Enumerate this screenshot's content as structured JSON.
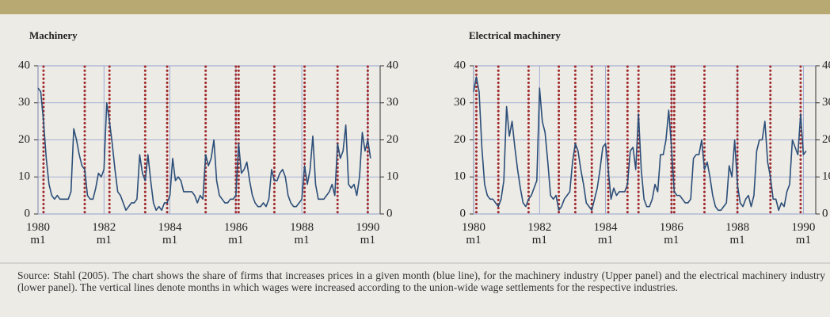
{
  "chart_data": [
    {
      "type": "line",
      "title": "Machinery",
      "categories": [
        "1980 m1",
        null,
        null,
        null,
        null,
        null,
        null,
        null,
        null,
        null,
        null,
        null,
        null,
        null,
        null,
        null,
        null,
        null,
        null,
        null,
        null,
        null,
        null,
        null,
        "1982 m1",
        null,
        null,
        null,
        null,
        null,
        null,
        null,
        null,
        null,
        null,
        null,
        null,
        null,
        null,
        null,
        null,
        null,
        null,
        null,
        null,
        null,
        null,
        null,
        "1984 m1",
        null,
        null,
        null,
        null,
        null,
        null,
        null,
        null,
        null,
        null,
        null,
        null,
        null,
        null,
        null,
        null,
        null,
        null,
        null,
        null,
        null,
        null,
        null,
        "1986 m1",
        null,
        null,
        null,
        null,
        null,
        null,
        null,
        null,
        null,
        null,
        null,
        null,
        null,
        null,
        null,
        null,
        null,
        null,
        null,
        null,
        null,
        null,
        null,
        "1988 m1",
        null,
        null,
        null,
        null,
        null,
        null,
        null,
        null,
        null,
        null,
        null,
        null,
        null,
        null,
        null,
        null,
        null,
        null,
        null,
        null,
        null,
        null,
        null,
        "1990 m1",
        null
      ],
      "series": [
        {
          "color": "#2c4e78",
          "values": [
            34,
            33,
            25,
            15,
            8,
            5,
            4,
            5,
            4,
            4,
            4,
            4,
            6,
            23,
            20,
            16,
            13,
            12,
            5,
            4,
            4,
            7,
            11,
            10,
            12,
            30,
            25,
            19,
            12,
            6,
            5,
            3,
            1,
            2,
            3,
            3,
            4,
            16,
            11,
            9,
            16,
            9,
            3,
            1,
            2,
            1,
            3,
            3,
            5,
            15,
            9,
            10,
            9,
            6,
            6,
            6,
            6,
            5,
            3,
            5,
            4,
            16,
            13,
            15,
            20,
            9,
            5,
            4,
            3,
            3,
            4,
            4,
            5,
            19,
            11,
            12,
            14,
            9,
            5,
            3,
            2,
            2,
            3,
            2,
            4,
            12,
            9,
            9,
            11,
            12,
            10,
            5,
            3,
            2,
            2,
            3,
            4,
            13,
            8,
            12,
            21,
            8,
            4,
            4,
            4,
            5,
            6,
            8,
            5,
            19,
            15,
            17,
            24,
            8,
            7,
            8,
            5,
            10,
            22,
            17,
            20,
            15
          ]
        }
      ],
      "wage_months": [
        2,
        17,
        26,
        39,
        47,
        61,
        72,
        73,
        86,
        97,
        109,
        120
      ],
      "wage_color": "#a0282a",
      "ylim": [
        0,
        40
      ],
      "yticks": [
        0,
        10,
        20,
        30,
        40
      ],
      "grid": true
    },
    {
      "type": "line",
      "title": "Electrical machinery",
      "categories": [
        "1980 m1",
        null,
        null,
        null,
        null,
        null,
        null,
        null,
        null,
        null,
        null,
        null,
        null,
        null,
        null,
        null,
        null,
        null,
        null,
        null,
        null,
        null,
        null,
        null,
        "1982 m1",
        null,
        null,
        null,
        null,
        null,
        null,
        null,
        null,
        null,
        null,
        null,
        null,
        null,
        null,
        null,
        null,
        null,
        null,
        null,
        null,
        null,
        null,
        null,
        "1984 m1",
        null,
        null,
        null,
        null,
        null,
        null,
        null,
        null,
        null,
        null,
        null,
        null,
        null,
        null,
        null,
        null,
        null,
        null,
        null,
        null,
        null,
        null,
        null,
        "1986 m1",
        null,
        null,
        null,
        null,
        null,
        null,
        null,
        null,
        null,
        null,
        null,
        null,
        null,
        null,
        null,
        null,
        null,
        null,
        null,
        null,
        null,
        null,
        null,
        "1988 m1",
        null,
        null,
        null,
        null,
        null,
        null,
        null,
        null,
        null,
        null,
        null,
        null,
        null,
        null,
        null,
        null,
        null,
        null,
        null,
        null,
        null,
        null,
        null,
        "1990 m1",
        null
      ],
      "series": [
        {
          "color": "#2c4e78",
          "values": [
            33,
            37,
            33,
            18,
            8,
            5,
            4,
            4,
            3,
            2,
            4,
            9,
            29,
            21,
            25,
            18,
            12,
            7,
            3,
            2,
            4,
            5,
            7,
            9,
            34,
            25,
            22,
            14,
            5,
            4,
            5,
            1,
            2,
            4,
            5,
            6,
            14,
            19,
            17,
            12,
            8,
            3,
            2,
            1,
            4,
            7,
            12,
            18,
            19,
            12,
            4,
            7,
            5,
            6,
            6,
            6,
            8,
            17,
            18,
            12,
            27,
            12,
            4,
            2,
            2,
            4,
            8,
            6,
            16,
            16,
            20,
            28,
            18,
            6,
            5,
            5,
            4,
            3,
            3,
            4,
            15,
            16,
            16,
            20,
            12,
            14,
            10,
            5,
            2,
            1,
            1,
            2,
            3,
            13,
            10,
            20,
            8,
            3,
            2,
            4,
            5,
            2,
            5,
            17,
            20,
            20,
            25,
            14,
            10,
            4,
            4,
            1,
            3,
            2,
            6,
            8,
            20,
            18,
            16,
            27,
            16,
            17
          ]
        }
      ],
      "wage_months": [
        1,
        9,
        20,
        31,
        37,
        43,
        49,
        56,
        60,
        72,
        73,
        84,
        96,
        108,
        119
      ],
      "wage_color": "#a0282a",
      "ylim": [
        0,
        40
      ],
      "yticks": [
        0,
        10,
        20,
        30,
        40
      ],
      "grid": true
    }
  ],
  "source": "Source: Stahl (2005). The chart shows the share of firms that increases prices in a given month (blue line), for the machinery industry (Upper panel) and the electrical machinery industry (lower panel). The vertical lines denote months in which wages were increased according to the union-wide wage settlements for the respective industries."
}
